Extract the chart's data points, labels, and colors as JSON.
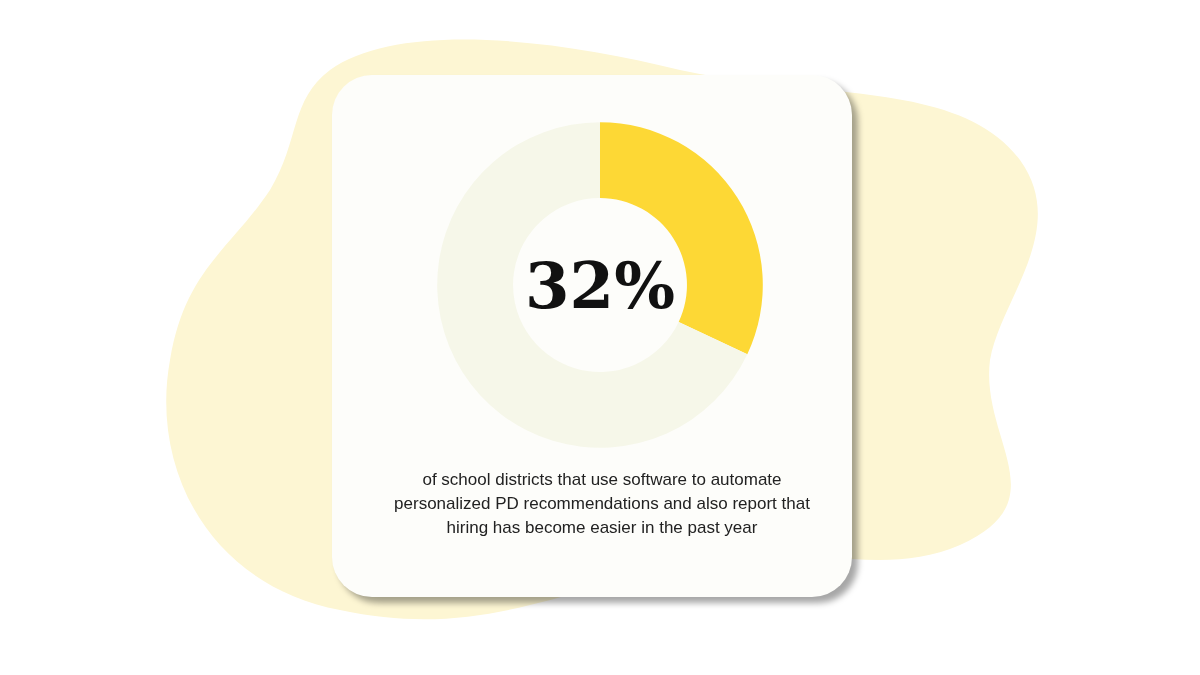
{
  "chart_data": {
    "type": "donut",
    "categories": [
      null,
      null
    ],
    "values": [
      32,
      68
    ],
    "colors": [
      "#fdd835",
      "#f6f7e9"
    ],
    "value_labels": [
      "32%",
      null
    ],
    "annotations": [
      "of school districts that use software to automate personalized PD recommendations and also report that hiring has become easier in the past year"
    ]
  }
}
